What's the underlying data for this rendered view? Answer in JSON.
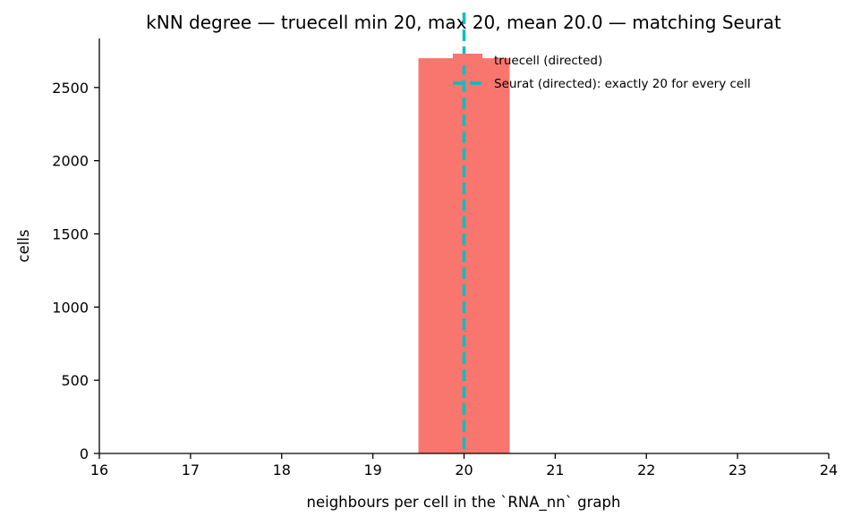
{
  "chart_data": {
    "type": "bar",
    "title": "kNN degree — truecell min 20, max 20, mean 20.0 — matching Seurat",
    "xlabel": "neighbours per cell in the `RNA_nn` graph",
    "ylabel": "cells",
    "xlim": [
      16,
      24
    ],
    "ylim": [
      0,
      2835
    ],
    "x_ticks": [
      "16",
      "17",
      "18",
      "19",
      "20",
      "21",
      "22",
      "23",
      "24"
    ],
    "y_ticks": [
      "0",
      "500",
      "1000",
      "1500",
      "2000",
      "2500"
    ],
    "bars": [
      {
        "x_start": 19.5,
        "x_end": 20.5,
        "value": 2700
      }
    ],
    "reference_line": {
      "x": 20,
      "style": "dashed"
    },
    "legend": {
      "placement": "top-right",
      "entries": [
        {
          "label": "truecell (directed)",
          "kind": "bar"
        },
        {
          "label": "Seurat (directed): exactly 20 for every cell",
          "kind": "dashed-line"
        }
      ]
    },
    "colors": {
      "bar": "#f8766d",
      "reference_line": "#00bfc4"
    },
    "grid": false
  }
}
